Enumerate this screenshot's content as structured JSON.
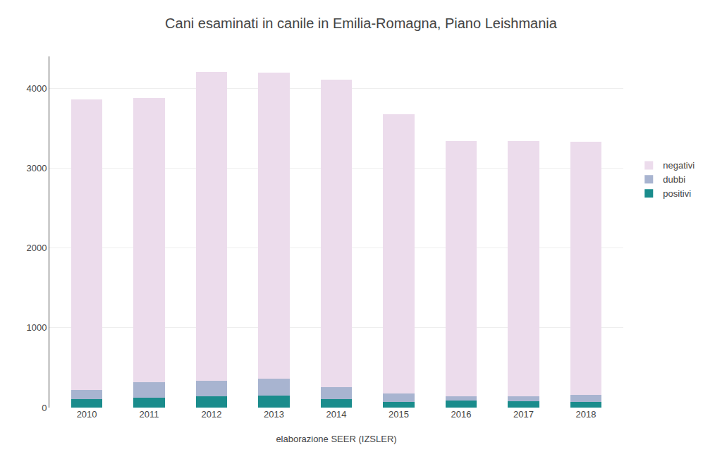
{
  "chart_data": {
    "type": "bar",
    "stacked": true,
    "title": "Cani esaminati in canile in Emilia-Romagna, Piano Leishmania",
    "x_label": "elaborazione SEER (IZSLER)",
    "categories": [
      "2010",
      "2011",
      "2012",
      "2013",
      "2014",
      "2015",
      "2016",
      "2017",
      "2018"
    ],
    "series": [
      {
        "name": "positivi",
        "color": "#1a8c8c",
        "values": [
          110,
          125,
          140,
          150,
          110,
          75,
          85,
          80,
          75
        ]
      },
      {
        "name": "dubbi",
        "color": "#a8b4d0",
        "values": [
          115,
          195,
          195,
          215,
          145,
          100,
          55,
          60,
          85
        ]
      },
      {
        "name": "negativi",
        "color": "#ecdcec",
        "values": [
          3640,
          3560,
          3870,
          3830,
          3850,
          3500,
          3200,
          3200,
          3170
        ]
      }
    ],
    "ylim": [
      0,
      4400
    ],
    "yticks": [
      0,
      1000,
      2000,
      3000,
      4000
    ],
    "grid": true,
    "legend": "right"
  }
}
